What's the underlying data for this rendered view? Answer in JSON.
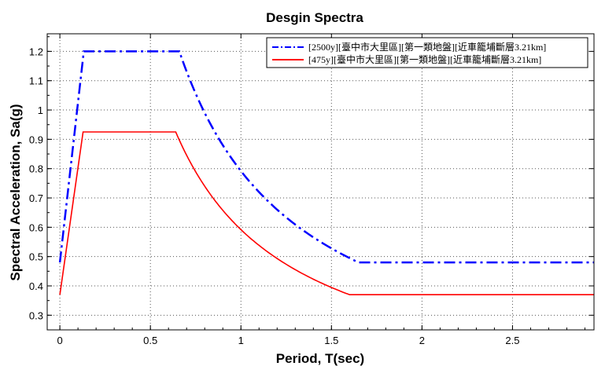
{
  "chart_data": {
    "type": "line",
    "title": "Desgin Spectra",
    "xlabel": "Period, T(sec)",
    "ylabel": "Spectral Acceleration, Sa(g)",
    "xlim": [
      -0.07,
      2.95
    ],
    "ylim": [
      0.25,
      1.26
    ],
    "xticks": [
      0,
      0.5,
      1,
      1.5,
      2,
      2.5
    ],
    "xtick_labels": [
      "0",
      "0.5",
      "1",
      "1.5",
      "2",
      "2.5"
    ],
    "yticks": [
      0.3,
      0.4,
      0.5,
      0.6,
      0.7,
      0.8,
      0.9,
      1.0,
      1.1,
      1.2
    ],
    "ytick_labels": [
      "0.3",
      "0.4",
      "0.5",
      "0.6",
      "0.7",
      "0.8",
      "0.9",
      "1",
      "1.1",
      "1.2"
    ],
    "grid": true,
    "legend_position": "top-right",
    "series": [
      {
        "name": "[2500y][臺中市大里區][第一類地盤][近車籠埔斷層3.21km]",
        "color": "#0000ff",
        "style": "dash-dot",
        "model": {
          "sds": 1.2,
          "t0": 0.66,
          "ts": 0.132,
          "pga": 0.48,
          "t_end": 1.65
        },
        "x": [
          0,
          0.132,
          0.66,
          0.8,
          1.0,
          1.2,
          1.4,
          1.65,
          2.95
        ],
        "y": [
          0.48,
          1.2,
          1.2,
          0.99,
          0.792,
          0.66,
          0.566,
          0.48,
          0.48
        ]
      },
      {
        "name": "[475y][臺中市大里區][第一類地盤][近車籠埔斷層3.21km]",
        "color": "#ff0000",
        "style": "solid",
        "model": {
          "sds": 0.925,
          "t0": 0.64,
          "ts": 0.128,
          "pga": 0.37,
          "t_end": 1.6
        },
        "x": [
          0,
          0.128,
          0.64,
          0.8,
          1.0,
          1.2,
          1.4,
          1.6,
          2.95
        ],
        "y": [
          0.37,
          0.925,
          0.925,
          0.74,
          0.592,
          0.493,
          0.423,
          0.37,
          0.37
        ]
      }
    ]
  }
}
